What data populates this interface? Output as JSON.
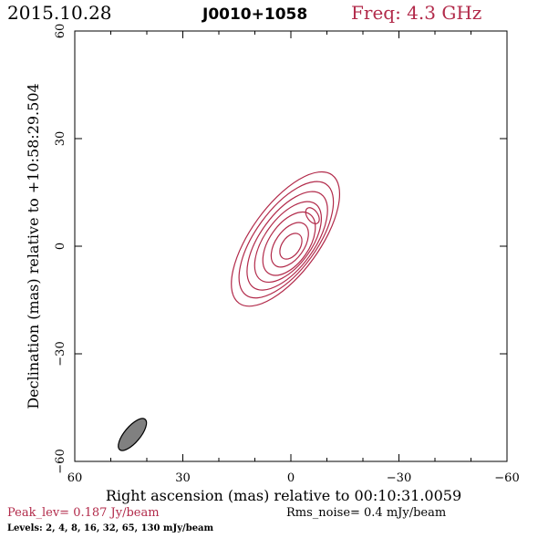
{
  "header": {
    "date": "2015.10.28",
    "source": "J0010+1058",
    "freq_label": "Freq: 4.3 GHz",
    "freq_color": "#b22a4a"
  },
  "chart_data": {
    "type": "contour",
    "title": "J0010+1058",
    "xlabel": "Right ascension (mas) relative to 00:10:31.0059",
    "ylabel": "Declination (mas) relative to +10:58:29.504",
    "xlim": [
      60,
      -60
    ],
    "ylim": [
      -60,
      60
    ],
    "xticks": [
      60,
      30,
      0,
      -30,
      -60
    ],
    "yticks": [
      60,
      30,
      0,
      -30,
      -60
    ],
    "x_tick_labels": [
      "60",
      "30",
      "0",
      "−30",
      "−60"
    ],
    "y_tick_labels": [
      "60",
      "30",
      "0",
      "−30",
      "−60"
    ],
    "contour_color": "#b22a4a",
    "contours": [
      {
        "cx": 0,
        "cy": 0,
        "a": 4,
        "b": 2.5,
        "pa": 35
      },
      {
        "cx": 0.3,
        "cy": 0.4,
        "a": 7,
        "b": 4,
        "pa": 35
      },
      {
        "cx": 0.5,
        "cy": 0.7,
        "a": 10,
        "b": 5.5,
        "pa": 35
      },
      {
        "cx": 0.8,
        "cy": 1.2,
        "a": 13,
        "b": 6.5,
        "pa": 36
      },
      {
        "cx": 1.0,
        "cy": 1.5,
        "a": 16,
        "b": 7.5,
        "pa": 36
      },
      {
        "cx": 1.3,
        "cy": 1.8,
        "a": 19,
        "b": 8.5,
        "pa": 36
      },
      {
        "cx": 1.5,
        "cy": 2.0,
        "a": 22,
        "b": 9.5,
        "pa": 36
      }
    ],
    "extra_contours": [
      {
        "cx": -6,
        "cy": 8.5,
        "a": 2.5,
        "b": 1.5,
        "pa": -35
      }
    ],
    "beam": {
      "cx": 44,
      "cy": -52.5,
      "a": 5.5,
      "b": 2.2,
      "pa": 40,
      "fill": "#808080"
    },
    "peak_label": "Peak_lev=  0.187 Jy/beam",
    "rms_label": "Rms_noise=  0.4 mJy/beam",
    "levels_label": "Levels:   2,    4,    8,   16,   32,   65,  130 mJy/beam"
  }
}
